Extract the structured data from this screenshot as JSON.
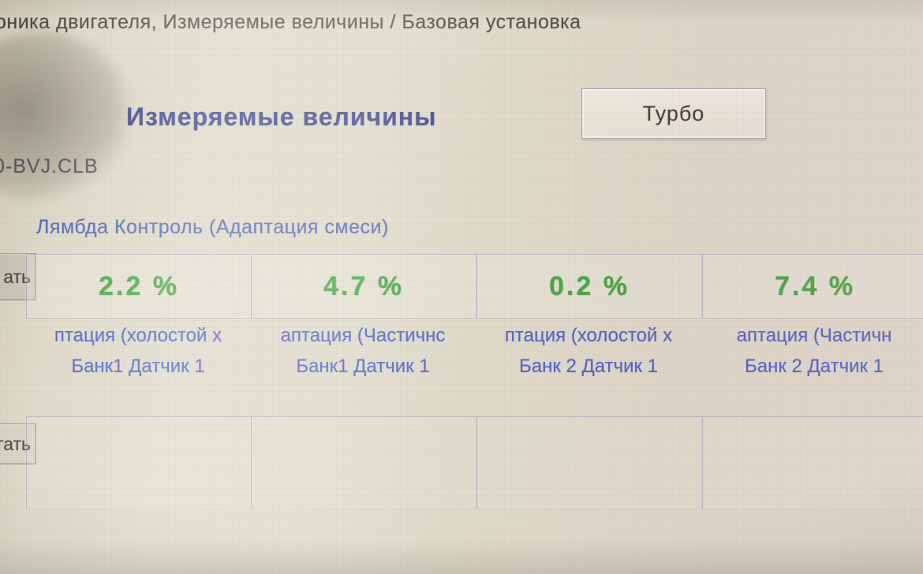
{
  "window": {
    "title_fragment": "оника двигателя,  Измеряемые величины / Базовая установка"
  },
  "header": {
    "heading": "Измеряемые величины",
    "turbo_button_label": "Турбо",
    "label_file": "0-BVJ.CLB"
  },
  "group": {
    "label": "Лямбда Контроль (Адаптация смеси)"
  },
  "left_buttons": {
    "top_fragment": "ать",
    "bottom_fragment": "гать"
  },
  "measurements": [
    {
      "value": "2.2 %",
      "line1": "птация (холостой х",
      "line2": "Банк1 Датчик 1"
    },
    {
      "value": "4.7 %",
      "line1": "аптация (Частичнс",
      "line2": "Банк1 Датчик 1"
    },
    {
      "value": "0.2 %",
      "line1": "птация (холостой х",
      "line2": "Банк 2 Датчик 1"
    },
    {
      "value": "7.4 %",
      "line1": "аптация (Частичн",
      "line2": "Банк 2 Датчик 1"
    }
  ],
  "colors": {
    "value_green": "#2f9e2f",
    "label_blue": "#3c50c2",
    "heading_navy": "#25307f",
    "group_blue": "#3e57ac",
    "background_beige": "#dcd8c5"
  }
}
